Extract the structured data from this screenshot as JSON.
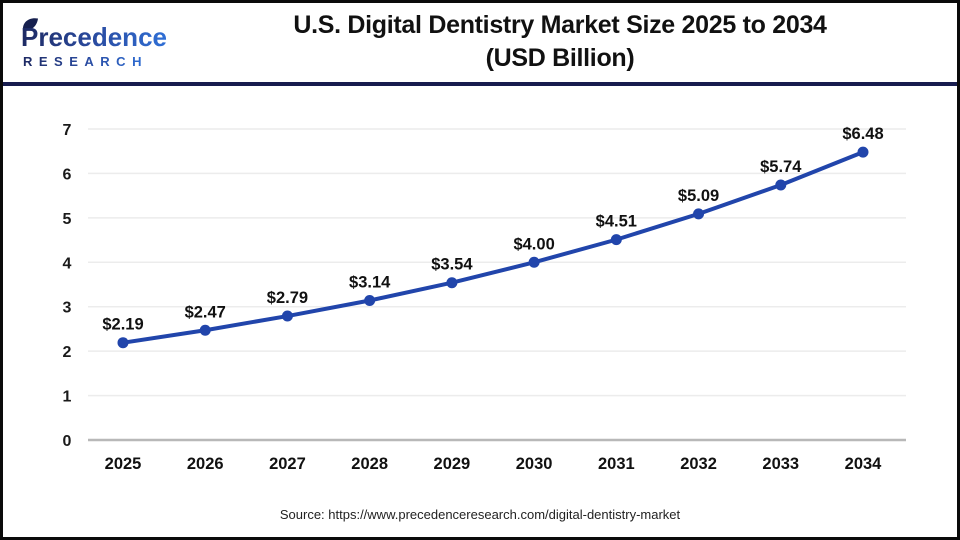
{
  "header": {
    "logo_name": "Precedence",
    "logo_sub": "RESEARCH",
    "title_line1": "U.S. Digital Dentistry Market Size 2025 to 2034",
    "title_line2": "(USD Billion)"
  },
  "chart_data": {
    "type": "line",
    "title": "U.S. Digital Dentistry Market Size 2025 to 2034 (USD Billion)",
    "categories": [
      "2025",
      "2026",
      "2027",
      "2028",
      "2029",
      "2030",
      "2031",
      "2032",
      "2033",
      "2034"
    ],
    "values": [
      2.19,
      2.47,
      2.79,
      3.14,
      3.54,
      4.0,
      4.51,
      5.09,
      5.74,
      6.48
    ],
    "data_labels": [
      "$2.19",
      "$2.47",
      "$2.79",
      "$3.14",
      "$3.54",
      "$4.00",
      "$4.51",
      "$5.09",
      "$5.74",
      "$6.48"
    ],
    "xlabel": "",
    "ylabel": "",
    "ylim": [
      0,
      7
    ],
    "yticks": [
      0,
      1,
      2,
      3,
      4,
      5,
      6,
      7
    ],
    "grid": "horizontal only",
    "legend_position": "none",
    "colors": {
      "line": "#2145ab",
      "marker": "#2145ab",
      "grid": "#ececec",
      "baseline": "#b8b8b8",
      "tick_text": "#1a1a1a",
      "label_text": "#111111"
    }
  },
  "footer": {
    "source": "Source: https://www.precedenceresearch.com/digital-dentistry-market"
  },
  "brand": {
    "logo_dark": "#1e2a63",
    "logo_light": "#2f6fd6",
    "divider": "#171c4e"
  }
}
